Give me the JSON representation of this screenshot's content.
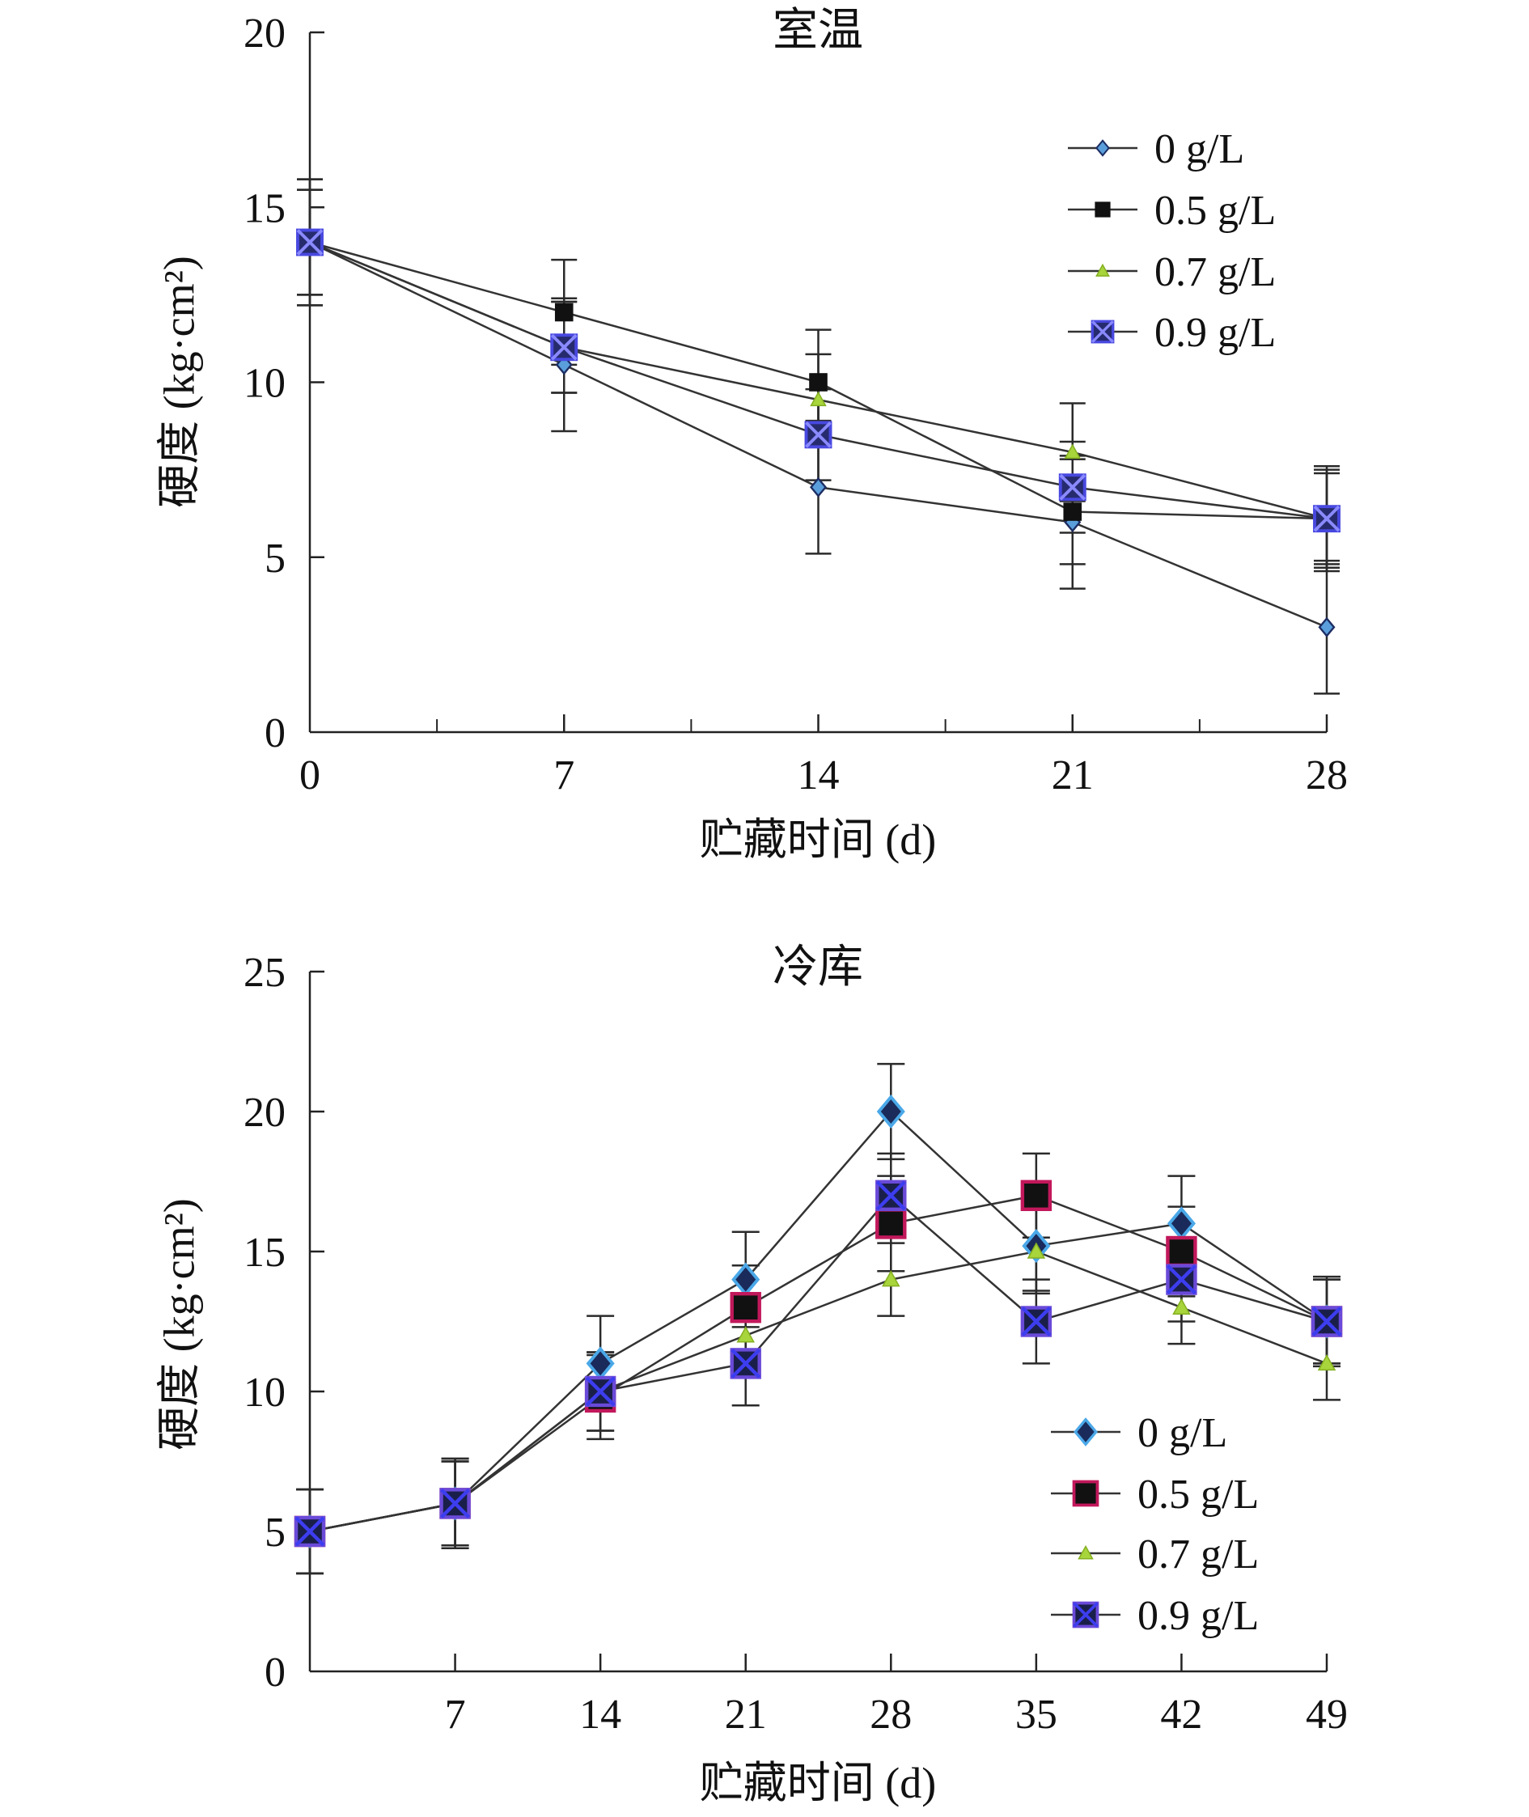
{
  "chart_data": [
    {
      "type": "line",
      "title": "室温",
      "xlabel": "贮藏时间 (d)",
      "ylabel": "硬度 (kg·cm²)",
      "x": [
        0,
        7,
        14,
        21,
        28
      ],
      "xticks": [
        0,
        7,
        14,
        21,
        28
      ],
      "yticks": [
        0,
        5,
        10,
        15,
        20
      ],
      "xlim": [
        0,
        28
      ],
      "ylim": [
        0,
        20
      ],
      "grid": false,
      "legend": "top-right",
      "line_color": "#333333",
      "series": [
        {
          "name": "0 g/L",
          "values": [
            14,
            10.5,
            7,
            6,
            3
          ],
          "error": [
            1.8,
            1.9,
            1.9,
            1.9,
            1.9
          ],
          "marker": "diamond",
          "fill": "#5a9fdc",
          "stroke": "#1d2d62"
        },
        {
          "name": "0.5 g/L",
          "values": [
            14,
            12,
            10,
            6.3,
            6.1
          ],
          "error": [
            1.8,
            1.5,
            1.5,
            1.5,
            1.5
          ],
          "marker": "square",
          "fill": "#111111",
          "stroke": "#111111"
        },
        {
          "name": "0.7 g/L",
          "values": [
            14,
            11,
            9.5,
            8,
            6.1
          ],
          "error": [
            1.5,
            1.3,
            1.3,
            1.4,
            1.4
          ],
          "marker": "triangle",
          "fill": "#a8d43c",
          "stroke": "#84b020"
        },
        {
          "name": "0.9 g/L",
          "values": [
            14,
            11,
            8.5,
            7,
            6.1
          ],
          "error": [
            1.5,
            1.3,
            1.3,
            1.3,
            1.3
          ],
          "marker": "square-x",
          "fill": "#262b6e",
          "stroke": "#4848e0",
          "cross": "#8a8aff"
        }
      ]
    },
    {
      "type": "line",
      "title": "冷库",
      "xlabel": "贮藏时间 (d)",
      "ylabel": "硬度 (kg·cm²)",
      "x": [
        0,
        7,
        14,
        21,
        28,
        35,
        42,
        49
      ],
      "xticks": [
        7,
        14,
        21,
        28,
        35,
        42,
        49
      ],
      "yticks": [
        0,
        5,
        10,
        15,
        20,
        25
      ],
      "xlim": [
        0,
        49
      ],
      "ylim": [
        0,
        25
      ],
      "grid": false,
      "legend": "bottom-right",
      "line_color": "#333333",
      "series": [
        {
          "name": "0 g/L",
          "values": [
            5,
            6,
            11,
            14,
            20,
            15.2,
            16,
            12.5
          ],
          "error": [
            1.5,
            1.6,
            1.7,
            1.7,
            1.7,
            1.6,
            1.7,
            1.6
          ],
          "marker": "diamond",
          "fill": "#1a2a5a",
          "stroke": "#4aa8e8"
        },
        {
          "name": "0.5 g/L",
          "values": [
            5,
            6,
            9.8,
            13,
            16,
            17,
            15,
            12.5
          ],
          "error": [
            1.5,
            1.6,
            1.5,
            1.5,
            1.7,
            1.5,
            1.6,
            1.5
          ],
          "marker": "square",
          "fill": "#111111",
          "stroke": "#c2185b"
        },
        {
          "name": "0.7 g/L",
          "values": [
            5,
            6,
            10,
            12,
            14,
            15,
            13,
            11
          ],
          "error": [
            1.5,
            1.5,
            1.4,
            1.5,
            1.3,
            1.5,
            1.3,
            1.3
          ],
          "marker": "triangle",
          "fill": "#a8d43c",
          "stroke": "#84b020"
        },
        {
          "name": "0.9 g/L",
          "values": [
            5,
            6,
            10,
            11,
            17,
            12.5,
            14,
            12.5
          ],
          "error": [
            1.5,
            1.5,
            1.4,
            1.5,
            1.5,
            1.5,
            1.5,
            1.5
          ],
          "marker": "square-x",
          "fill": "#1a1f4a",
          "stroke": "#6a4ad8",
          "cross": "#3d3df0"
        }
      ]
    }
  ]
}
